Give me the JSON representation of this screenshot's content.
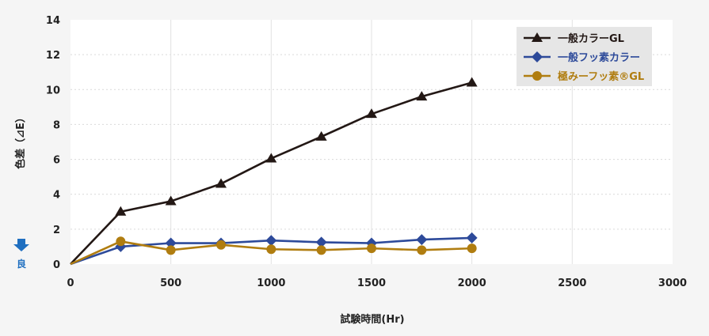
{
  "chart_data": {
    "type": "line",
    "xlabel": "試験時間(Hr)",
    "ylabel": "色差（⊿E）",
    "xlim": [
      0,
      3000
    ],
    "ylim": [
      0,
      14
    ],
    "x_ticks": [
      "0",
      "500",
      "1000",
      "1500",
      "2000",
      "2500",
      "3000"
    ],
    "y_ticks": [
      "0",
      "2",
      "4",
      "6",
      "8",
      "10",
      "12",
      "14"
    ],
    "grid": true,
    "legend_position": "top-right",
    "better_label": "良",
    "series": [
      {
        "name": "一般カラーGL",
        "color": "#231815",
        "marker": "triangle",
        "x": [
          0,
          250,
          500,
          750,
          1000,
          1250,
          1500,
          1750,
          2000
        ],
        "y": [
          0,
          3.0,
          3.6,
          4.6,
          6.05,
          7.3,
          8.6,
          9.6,
          10.4
        ]
      },
      {
        "name": "一般フッ素カラー",
        "color": "#2d4a9a",
        "marker": "diamond",
        "x": [
          0,
          250,
          500,
          750,
          1000,
          1250,
          1500,
          1750,
          2000
        ],
        "y": [
          0,
          1.0,
          1.2,
          1.2,
          1.35,
          1.25,
          1.2,
          1.4,
          1.5
        ]
      },
      {
        "name": "極みーフッ素®GL",
        "color": "#b07d10",
        "marker": "circle",
        "x": [
          0,
          250,
          500,
          750,
          1000,
          1250,
          1500,
          1750,
          2000
        ],
        "y": [
          0,
          1.3,
          0.8,
          1.1,
          0.85,
          0.8,
          0.9,
          0.8,
          0.9
        ]
      }
    ]
  }
}
